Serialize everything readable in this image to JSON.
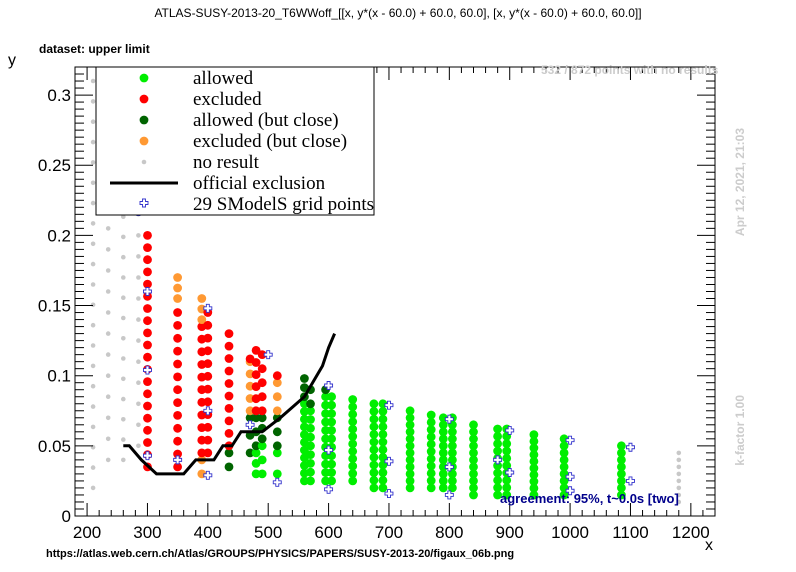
{
  "title": "ATLAS-SUSY-2013-20_T6WWoff_[[x, y*(x - 60.0) + 60.0, 60.0], [x, y*(x - 60.0) + 60.0, 60.0]]",
  "dataset_label": "dataset: upper limit",
  "url": "https://atlas.web.cern.ch/Atlas/GROUPS/PHYSICS/PAPERS/SUSY-2013-20/figaux_06b.png",
  "no_results_note": "532 / 872 points with no results",
  "agreement_note": "agreement: 95%, t~0.0s [two]",
  "date_note": "Apr 12, 2021, 21:03",
  "kfactor_note": "k-factor 1.00",
  "colors": {
    "allowed": "#00ee00",
    "excluded": "#ff0000",
    "allowed_close": "#006400",
    "excluded_close": "#ff9933",
    "no_result": "#c8c8c8",
    "official": "#000000",
    "grid_points": "#3333cc"
  },
  "chart_data": {
    "type": "scatter",
    "xlabel": "x",
    "ylabel": "y",
    "xlim": [
      180,
      1240
    ],
    "ylim": [
      0,
      0.32
    ],
    "xticks": [
      200,
      300,
      400,
      500,
      600,
      700,
      800,
      900,
      1000,
      1100,
      1200
    ],
    "xtick_labels": [
      "200",
      "300",
      "400",
      "500",
      "600",
      "700",
      "800",
      "900",
      "1000",
      "1100",
      "1200"
    ],
    "yticks": [
      0,
      0.05,
      0.1,
      0.15,
      0.2,
      0.25,
      0.3
    ],
    "ytick_labels": [
      "0",
      "0.05",
      "0.1",
      "0.15",
      "0.2",
      "0.25",
      "0.3"
    ],
    "legend": [
      {
        "key": "allowed",
        "label": "allowed"
      },
      {
        "key": "excluded",
        "label": "excluded"
      },
      {
        "key": "allowed_close",
        "label": "allowed (but close)"
      },
      {
        "key": "excluded_close",
        "label": "excluded (but close)"
      },
      {
        "key": "no_result",
        "label": "no result"
      },
      {
        "key": "official",
        "label": "official exclusion"
      },
      {
        "key": "grid_points",
        "label": "29 SModelS grid points"
      }
    ],
    "columns": [
      {
        "x": 210,
        "segments": [
          {
            "cls": "no_result",
            "ymin": 0.02,
            "ymax": 0.31,
            "n": 21
          }
        ]
      },
      {
        "x": 235,
        "segments": [
          {
            "cls": "no_result",
            "ymin": 0.04,
            "ymax": 0.22,
            "n": 13
          }
        ]
      },
      {
        "x": 260,
        "segments": [
          {
            "cls": "no_result",
            "ymin": 0.04,
            "ymax": 0.3,
            "n": 19
          }
        ]
      },
      {
        "x": 285,
        "segments": [
          {
            "cls": "no_result",
            "ymin": 0.05,
            "ymax": 0.29,
            "n": 17
          }
        ]
      },
      {
        "x": 300,
        "segments": [
          {
            "cls": "excluded",
            "ymin": 0.035,
            "ymax": 0.2,
            "n": 20
          }
        ]
      },
      {
        "x": 350,
        "segments": [
          {
            "cls": "excluded",
            "ymin": 0.035,
            "ymax": 0.145,
            "n": 13
          },
          {
            "cls": "excluded_close",
            "ymin": 0.155,
            "ymax": 0.17,
            "n": 3
          }
        ]
      },
      {
        "x": 390,
        "segments": [
          {
            "cls": "excluded_close",
            "ymin": 0.03,
            "ymax": 0.04,
            "n": 2
          },
          {
            "cls": "excluded",
            "ymin": 0.045,
            "ymax": 0.135,
            "n": 11
          },
          {
            "cls": "excluded_close",
            "ymin": 0.14,
            "ymax": 0.155,
            "n": 3
          }
        ]
      },
      {
        "x": 400,
        "segments": [
          {
            "cls": "excluded",
            "ymin": 0.045,
            "ymax": 0.145,
            "n": 12
          }
        ]
      },
      {
        "x": 435,
        "segments": [
          {
            "cls": "allowed_close",
            "ymin": 0.035,
            "ymax": 0.045,
            "n": 2
          },
          {
            "cls": "excluded",
            "ymin": 0.05,
            "ymax": 0.13,
            "n": 10
          }
        ]
      },
      {
        "x": 470,
        "segments": [
          {
            "cls": "allowed_close",
            "ymin": 0.045,
            "ymax": 0.07,
            "n": 3
          },
          {
            "cls": "excluded_close",
            "ymin": 0.075,
            "ymax": 0.11,
            "n": 5
          },
          {
            "cls": "excluded",
            "ymin": 0.112,
            "ymax": 0.118,
            "n": 1
          }
        ]
      },
      {
        "x": 480,
        "segments": [
          {
            "cls": "allowed",
            "ymin": 0.03,
            "ymax": 0.045,
            "n": 3
          },
          {
            "cls": "allowed_close",
            "ymin": 0.05,
            "ymax": 0.07,
            "n": 3
          },
          {
            "cls": "excluded",
            "ymin": 0.075,
            "ymax": 0.118,
            "n": 6
          }
        ]
      },
      {
        "x": 490,
        "segments": [
          {
            "cls": "allowed",
            "ymin": 0.03,
            "ymax": 0.05,
            "n": 3
          },
          {
            "cls": "allowed_close",
            "ymin": 0.055,
            "ymax": 0.07,
            "n": 3
          },
          {
            "cls": "excluded",
            "ymin": 0.075,
            "ymax": 0.115,
            "n": 5
          }
        ]
      },
      {
        "x": 515,
        "segments": [
          {
            "cls": "allowed",
            "ymin": 0.03,
            "ymax": 0.045,
            "n": 2
          },
          {
            "cls": "allowed_close",
            "ymin": 0.05,
            "ymax": 0.07,
            "n": 3
          },
          {
            "cls": "excluded_close",
            "ymin": 0.075,
            "ymax": 0.095,
            "n": 3
          },
          {
            "cls": "excluded",
            "ymin": 0.1,
            "ymax": 0.107,
            "n": 1
          }
        ]
      },
      {
        "x": 560,
        "segments": [
          {
            "cls": "allowed",
            "ymin": 0.025,
            "ymax": 0.08,
            "n": 11
          },
          {
            "cls": "allowed_close",
            "ymin": 0.085,
            "ymax": 0.098,
            "n": 3
          }
        ]
      },
      {
        "x": 570,
        "segments": [
          {
            "cls": "allowed",
            "ymin": 0.025,
            "ymax": 0.075,
            "n": 9
          },
          {
            "cls": "allowed_close",
            "ymin": 0.08,
            "ymax": 0.09,
            "n": 2
          }
        ]
      },
      {
        "x": 595,
        "segments": [
          {
            "cls": "allowed",
            "ymin": 0.025,
            "ymax": 0.085,
            "n": 11
          },
          {
            "cls": "allowed_close",
            "ymin": 0.09,
            "ymax": 0.095,
            "n": 1
          }
        ]
      },
      {
        "x": 605,
        "segments": [
          {
            "cls": "allowed",
            "ymin": 0.025,
            "ymax": 0.085,
            "n": 11
          }
        ]
      },
      {
        "x": 640,
        "segments": [
          {
            "cls": "allowed",
            "ymin": 0.025,
            "ymax": 0.083,
            "n": 12
          }
        ]
      },
      {
        "x": 675,
        "segments": [
          {
            "cls": "allowed",
            "ymin": 0.02,
            "ymax": 0.08,
            "n": 12
          }
        ]
      },
      {
        "x": 690,
        "segments": [
          {
            "cls": "allowed",
            "ymin": 0.02,
            "ymax": 0.08,
            "n": 12
          }
        ]
      },
      {
        "x": 735,
        "segments": [
          {
            "cls": "allowed",
            "ymin": 0.02,
            "ymax": 0.075,
            "n": 12
          }
        ]
      },
      {
        "x": 770,
        "segments": [
          {
            "cls": "allowed",
            "ymin": 0.02,
            "ymax": 0.072,
            "n": 11
          }
        ]
      },
      {
        "x": 790,
        "segments": [
          {
            "cls": "allowed",
            "ymin": 0.02,
            "ymax": 0.07,
            "n": 11
          }
        ]
      },
      {
        "x": 805,
        "segments": [
          {
            "cls": "allowed",
            "ymin": 0.02,
            "ymax": 0.07,
            "n": 11
          }
        ]
      },
      {
        "x": 840,
        "segments": [
          {
            "cls": "allowed",
            "ymin": 0.015,
            "ymax": 0.065,
            "n": 11
          }
        ]
      },
      {
        "x": 880,
        "segments": [
          {
            "cls": "allowed",
            "ymin": 0.015,
            "ymax": 0.062,
            "n": 10
          }
        ]
      },
      {
        "x": 895,
        "segments": [
          {
            "cls": "allowed",
            "ymin": 0.015,
            "ymax": 0.062,
            "n": 10
          }
        ]
      },
      {
        "x": 940,
        "segments": [
          {
            "cls": "allowed",
            "ymin": 0.015,
            "ymax": 0.058,
            "n": 10
          }
        ]
      },
      {
        "x": 990,
        "segments": [
          {
            "cls": "allowed",
            "ymin": 0.015,
            "ymax": 0.055,
            "n": 9
          }
        ]
      },
      {
        "x": 1085,
        "segments": [
          {
            "cls": "allowed",
            "ymin": 0.015,
            "ymax": 0.05,
            "n": 8
          }
        ]
      },
      {
        "x": 1180,
        "segments": [
          {
            "cls": "no_result",
            "ymin": 0.01,
            "ymax": 0.045,
            "n": 8
          }
        ]
      }
    ],
    "grid_points": [
      [
        285,
        0.217
      ],
      [
        300,
        0.16
      ],
      [
        300,
        0.104
      ],
      [
        300,
        0.043
      ],
      [
        400,
        0.148
      ],
      [
        400,
        0.075
      ],
      [
        400,
        0.029
      ],
      [
        500,
        0.115
      ],
      [
        515,
        0.024
      ],
      [
        600,
        0.093
      ],
      [
        600,
        0.047
      ],
      [
        600,
        0.019
      ],
      [
        700,
        0.079
      ],
      [
        700,
        0.039
      ],
      [
        700,
        0.016
      ],
      [
        800,
        0.069
      ],
      [
        800,
        0.035
      ],
      [
        800,
        0.015
      ],
      [
        900,
        0.061
      ],
      [
        900,
        0.031
      ],
      [
        1000,
        0.054
      ],
      [
        1000,
        0.028
      ],
      [
        1100,
        0.049
      ],
      [
        1100,
        0.025
      ],
      [
        300,
        0.3
      ],
      [
        350,
        0.04
      ],
      [
        470,
        0.065
      ],
      [
        880,
        0.04
      ],
      [
        1000,
        0.018
      ]
    ],
    "official_exclusion": {
      "x": [
        260,
        270,
        290,
        315,
        360,
        380,
        400,
        410,
        425,
        440,
        455,
        470,
        490,
        520,
        560,
        590,
        600,
        610
      ],
      "y": [
        0.05,
        0.05,
        0.04,
        0.03,
        0.03,
        0.04,
        0.04,
        0.04,
        0.05,
        0.05,
        0.06,
        0.06,
        0.06,
        0.07,
        0.085,
        0.107,
        0.12,
        0.13
      ]
    }
  }
}
